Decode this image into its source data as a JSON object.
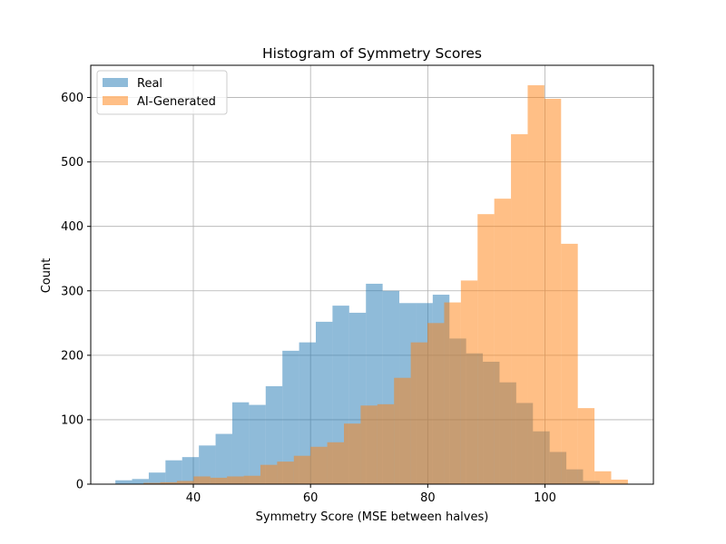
{
  "chart_data": {
    "type": "bar",
    "title": "Histogram of Symmetry Scores",
    "xlabel": "Symmetry Score (MSE between halves)",
    "ylabel": "Count",
    "xlim": [
      22.5,
      118.5
    ],
    "ylim": [
      0,
      650
    ],
    "xticks": [
      40,
      60,
      80,
      100
    ],
    "yticks": [
      0,
      100,
      200,
      300,
      400,
      500,
      600
    ],
    "grid": true,
    "legend": "top-left",
    "series": [
      {
        "name": "Real",
        "color": "#1f77b4",
        "alpha": 0.5,
        "bins": [
          {
            "x0": 26.7,
            "x1": 29.55,
            "count": 6
          },
          {
            "x0": 29.55,
            "x1": 32.4,
            "count": 8
          },
          {
            "x0": 32.4,
            "x1": 35.25,
            "count": 18
          },
          {
            "x0": 35.25,
            "x1": 38.1,
            "count": 37
          },
          {
            "x0": 38.1,
            "x1": 40.95,
            "count": 42
          },
          {
            "x0": 40.95,
            "x1": 43.8,
            "count": 60
          },
          {
            "x0": 43.8,
            "x1": 46.65,
            "count": 78
          },
          {
            "x0": 46.65,
            "x1": 49.5,
            "count": 127
          },
          {
            "x0": 49.5,
            "x1": 52.35,
            "count": 123
          },
          {
            "x0": 52.35,
            "x1": 55.2,
            "count": 152
          },
          {
            "x0": 55.2,
            "x1": 58.05,
            "count": 207
          },
          {
            "x0": 58.05,
            "x1": 60.9,
            "count": 220
          },
          {
            "x0": 60.9,
            "x1": 63.75,
            "count": 252
          },
          {
            "x0": 63.75,
            "x1": 66.6,
            "count": 277
          },
          {
            "x0": 66.6,
            "x1": 69.45,
            "count": 266
          },
          {
            "x0": 69.45,
            "x1": 72.3,
            "count": 311
          },
          {
            "x0": 72.3,
            "x1": 75.15,
            "count": 300
          },
          {
            "x0": 75.15,
            "x1": 78.0,
            "count": 281
          },
          {
            "x0": 78.0,
            "x1": 80.85,
            "count": 281
          },
          {
            "x0": 80.85,
            "x1": 83.7,
            "count": 294
          },
          {
            "x0": 83.7,
            "x1": 86.55,
            "count": 226
          },
          {
            "x0": 86.55,
            "x1": 89.4,
            "count": 203
          },
          {
            "x0": 89.4,
            "x1": 92.25,
            "count": 190
          },
          {
            "x0": 92.25,
            "x1": 95.1,
            "count": 158
          },
          {
            "x0": 95.1,
            "x1": 97.95,
            "count": 126
          },
          {
            "x0": 97.95,
            "x1": 100.8,
            "count": 82
          },
          {
            "x0": 100.8,
            "x1": 103.65,
            "count": 50
          },
          {
            "x0": 103.65,
            "x1": 106.5,
            "count": 23
          },
          {
            "x0": 106.5,
            "x1": 109.35,
            "count": 5
          }
        ]
      },
      {
        "name": "AI-Generated",
        "color": "#ff7f0e",
        "alpha": 0.5,
        "bins": [
          {
            "x0": 31.5,
            "x1": 34.35,
            "count": 2
          },
          {
            "x0": 34.35,
            "x1": 37.2,
            "count": 3
          },
          {
            "x0": 37.2,
            "x1": 40.05,
            "count": 5
          },
          {
            "x0": 40.05,
            "x1": 42.9,
            "count": 12
          },
          {
            "x0": 42.9,
            "x1": 45.75,
            "count": 10
          },
          {
            "x0": 45.75,
            "x1": 48.6,
            "count": 12
          },
          {
            "x0": 48.6,
            "x1": 51.45,
            "count": 13
          },
          {
            "x0": 51.45,
            "x1": 54.3,
            "count": 30
          },
          {
            "x0": 54.3,
            "x1": 57.15,
            "count": 35
          },
          {
            "x0": 57.15,
            "x1": 60.0,
            "count": 44
          },
          {
            "x0": 60.0,
            "x1": 62.85,
            "count": 58
          },
          {
            "x0": 62.85,
            "x1": 65.7,
            "count": 65
          },
          {
            "x0": 65.7,
            "x1": 68.55,
            "count": 94
          },
          {
            "x0": 68.55,
            "x1": 71.4,
            "count": 122
          },
          {
            "x0": 71.4,
            "x1": 74.25,
            "count": 124
          },
          {
            "x0": 74.25,
            "x1": 77.1,
            "count": 165
          },
          {
            "x0": 77.1,
            "x1": 79.95,
            "count": 220
          },
          {
            "x0": 79.95,
            "x1": 82.8,
            "count": 250
          },
          {
            "x0": 82.8,
            "x1": 85.65,
            "count": 282
          },
          {
            "x0": 85.65,
            "x1": 88.5,
            "count": 316
          },
          {
            "x0": 88.5,
            "x1": 91.35,
            "count": 419
          },
          {
            "x0": 91.35,
            "x1": 94.2,
            "count": 443
          },
          {
            "x0": 94.2,
            "x1": 97.05,
            "count": 543
          },
          {
            "x0": 97.05,
            "x1": 99.9,
            "count": 619
          },
          {
            "x0": 99.9,
            "x1": 102.75,
            "count": 598
          },
          {
            "x0": 102.75,
            "x1": 105.6,
            "count": 373
          },
          {
            "x0": 105.6,
            "x1": 108.45,
            "count": 118
          },
          {
            "x0": 108.45,
            "x1": 111.3,
            "count": 20
          },
          {
            "x0": 111.3,
            "x1": 114.15,
            "count": 7
          }
        ]
      }
    ]
  }
}
